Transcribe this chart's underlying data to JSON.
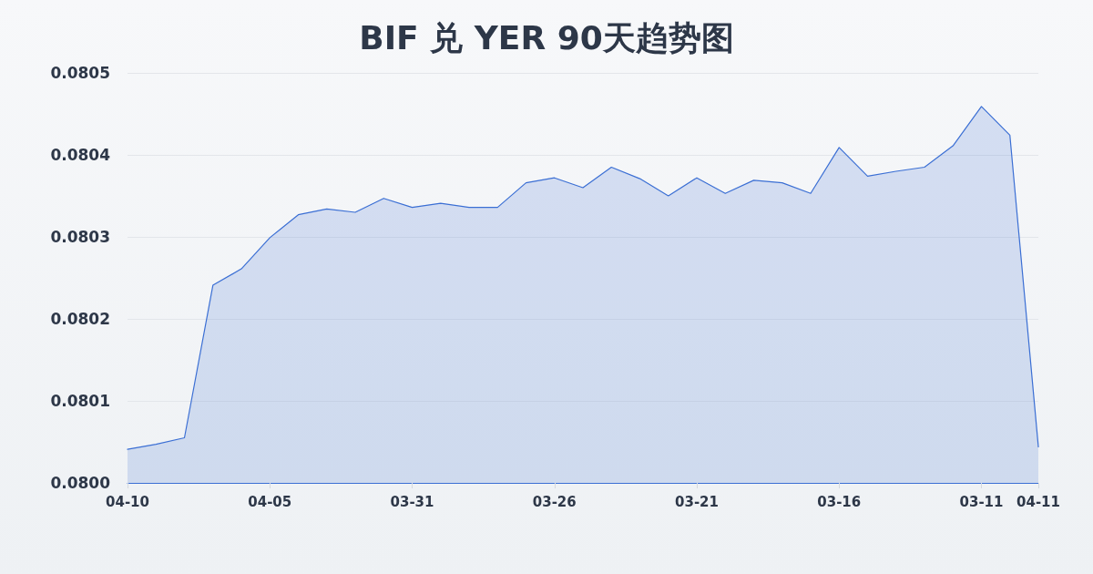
{
  "chart_data": {
    "type": "area",
    "title": "BIF 兑 YER 90天趋势图",
    "categories": [
      "04-10",
      null,
      null,
      null,
      null,
      "04-05",
      null,
      null,
      null,
      null,
      "03-31",
      null,
      null,
      null,
      null,
      "03-26",
      null,
      null,
      null,
      null,
      "03-21",
      null,
      null,
      null,
      null,
      "03-16",
      null,
      null,
      null,
      null,
      "03-11",
      null,
      "04-11"
    ],
    "values": [
      0.080041,
      0.080047,
      0.080055,
      0.080241,
      0.080261,
      0.080299,
      0.080327,
      0.080334,
      0.08033,
      0.080347,
      0.080336,
      0.080341,
      0.080336,
      0.080336,
      0.080366,
      0.080372,
      0.08036,
      0.080385,
      0.080371,
      0.08035,
      0.080372,
      0.080353,
      0.080369,
      0.080366,
      0.080353,
      0.080409,
      0.080374,
      0.08038,
      0.080385,
      0.080411,
      0.080459,
      0.080424,
      0.080044
    ],
    "color": "#3b6fd4",
    "ylim": [
      0.08,
      0.0805
    ],
    "yticks": [
      {
        "value": 0.08,
        "label": "0.0800"
      },
      0.0801,
      0.0802,
      0.0803,
      0.0804,
      0.0805
    ],
    "grid": "y",
    "marker": "none",
    "line_style": "solid"
  }
}
